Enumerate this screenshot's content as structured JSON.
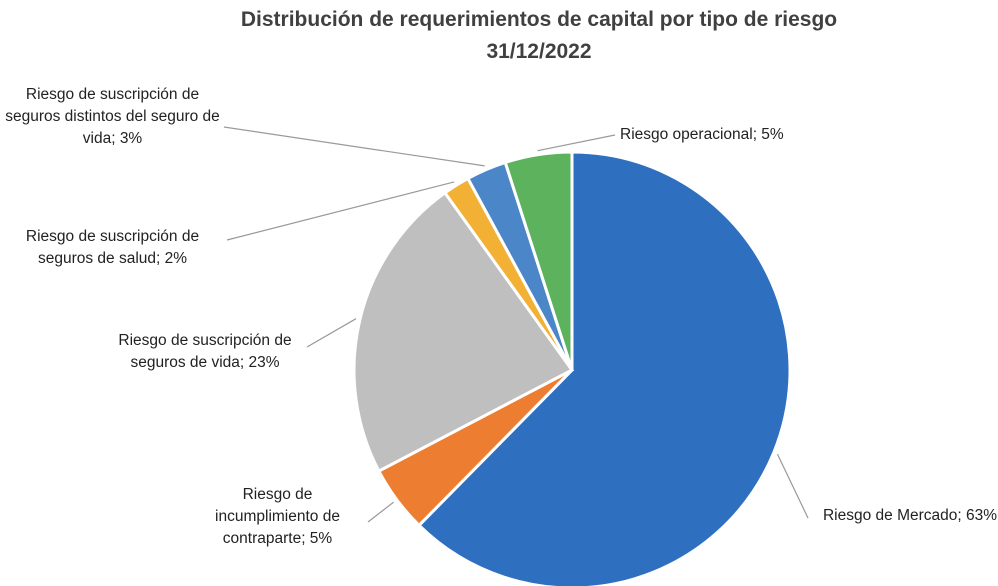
{
  "chart_data": {
    "type": "pie",
    "title": "Distribución de requerimientos de capital por tipo de riesgo",
    "subtitle": "31/12/2022",
    "values": [
      63,
      5,
      23,
      2,
      3,
      5
    ],
    "value_labels": [
      "Riesgo de Mercado; 63%",
      "Riesgo de incumplimiento de contraparte; 5%",
      "Riesgo de suscripción de seguros de vida; 23%",
      "Riesgo de suscripción de seguros de salud; 2%",
      "Riesgo de suscripción de seguros distintos del seguro de vida; 3%",
      "Riesgo operacional; 5%"
    ],
    "colors": [
      "#2e6fc0",
      "#ed7d31",
      "#bfbfbf",
      "#f2b134",
      "#4a86c8",
      "#5cb25d"
    ]
  }
}
